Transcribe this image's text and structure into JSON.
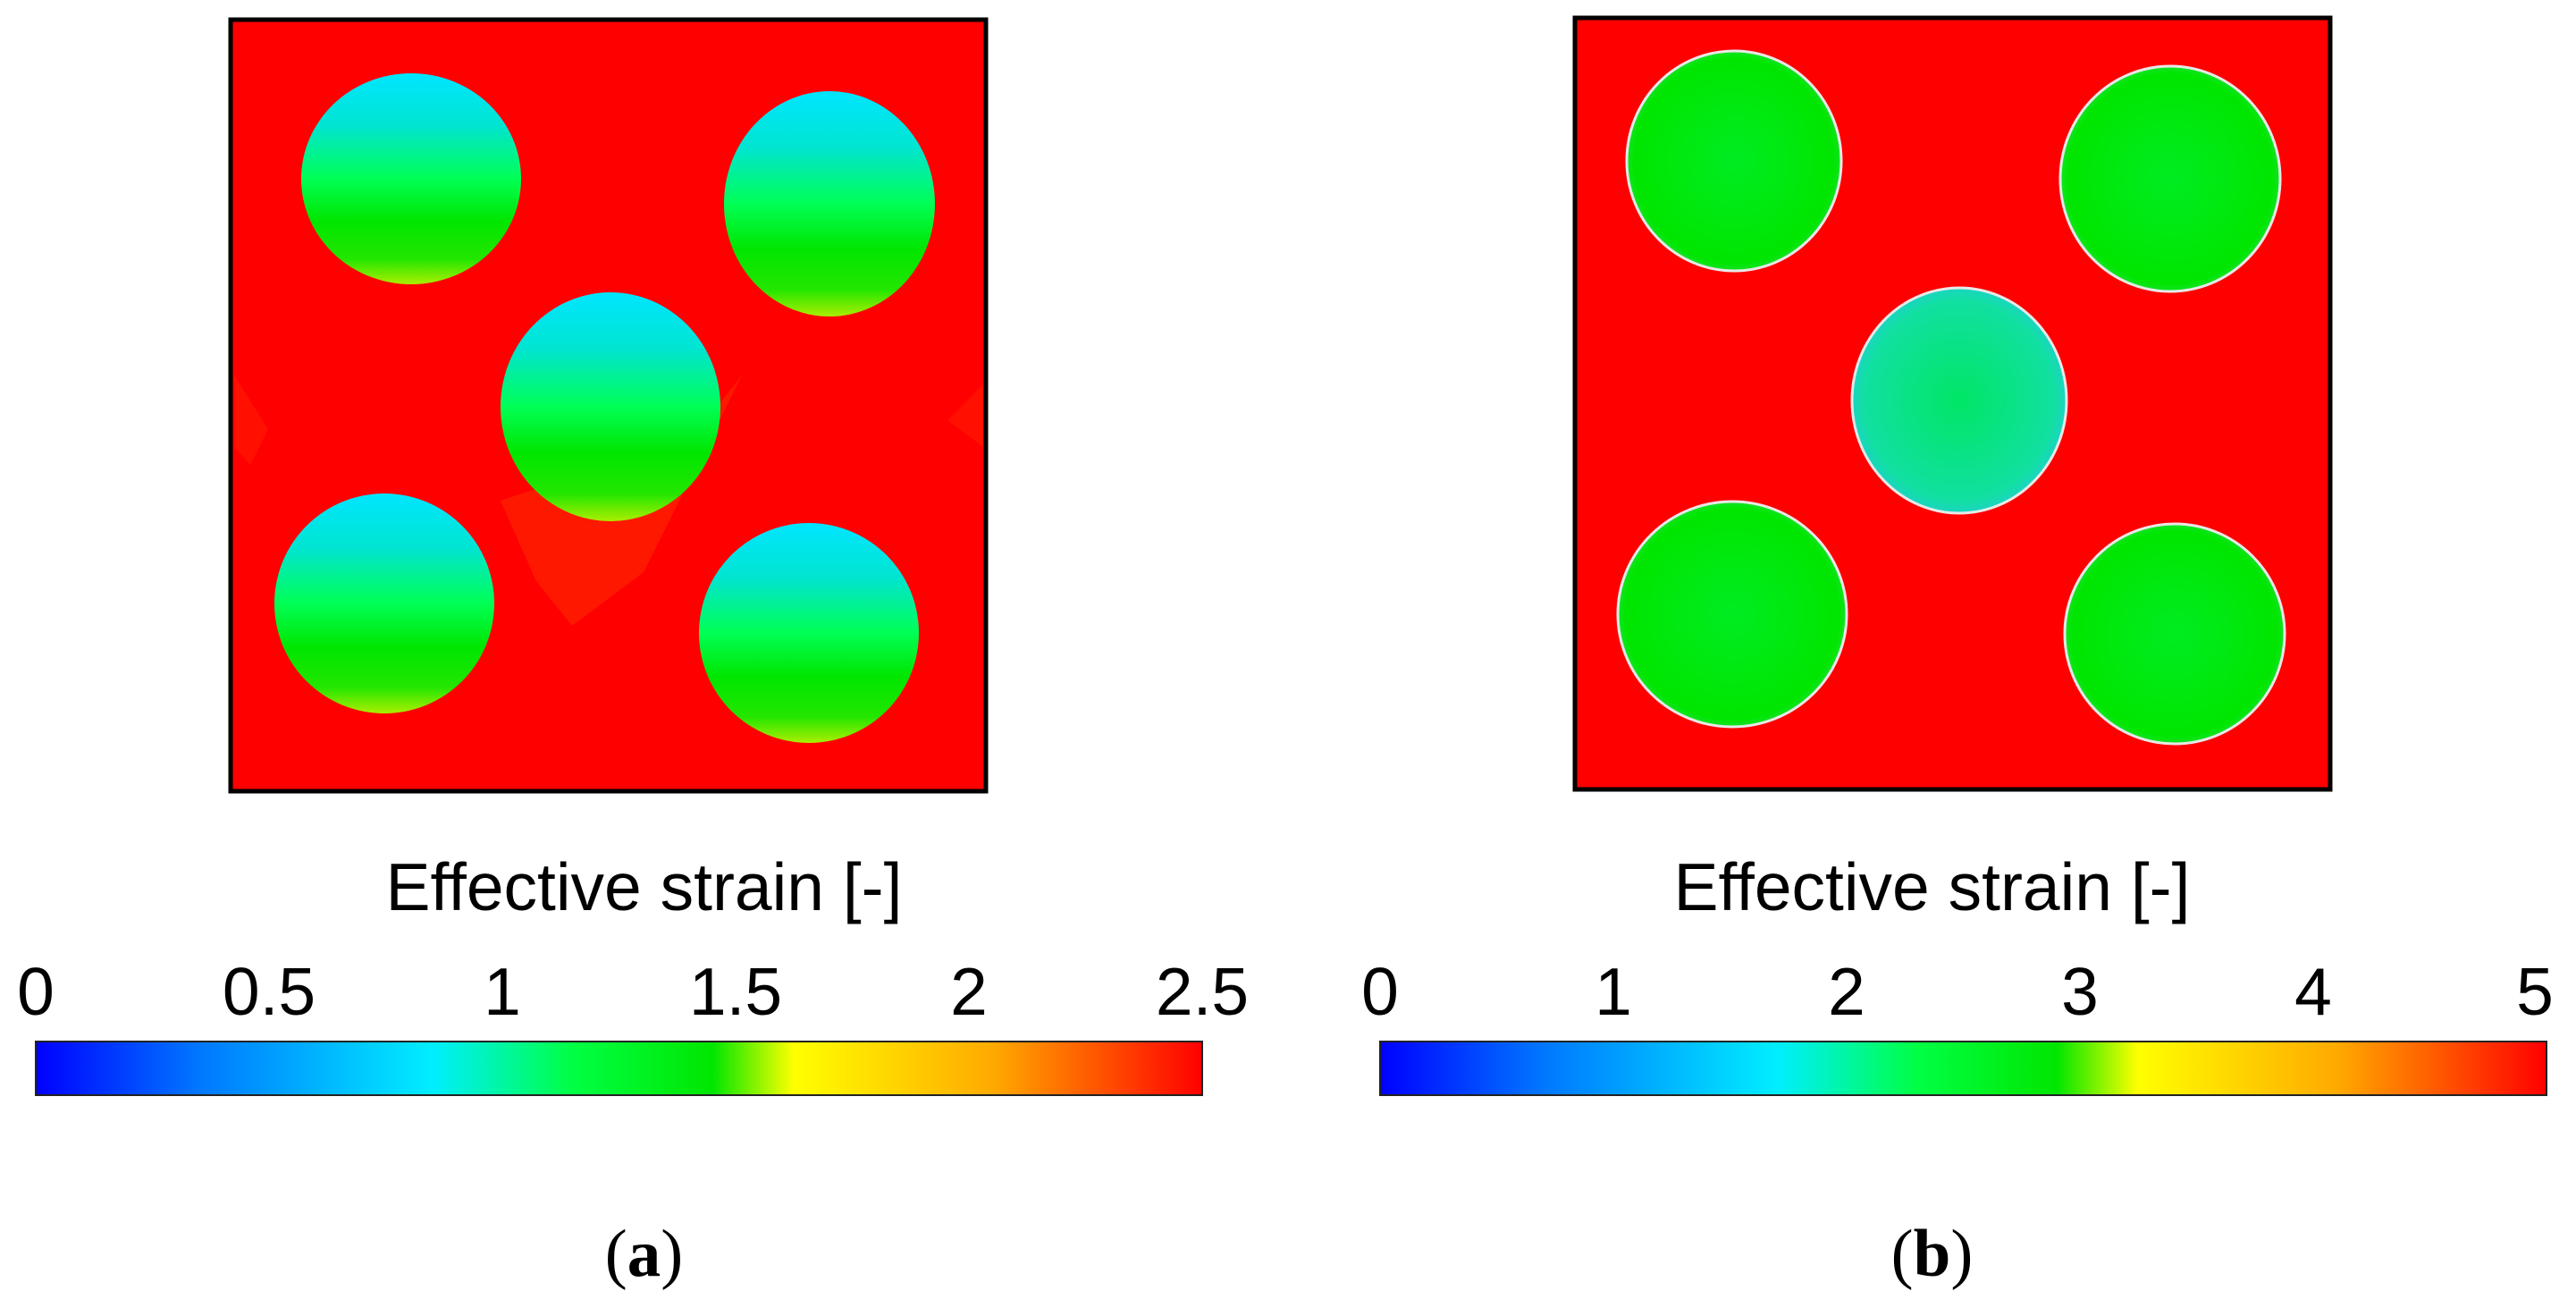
{
  "panels": [
    {
      "id": "a",
      "colorbar_title": "Effective strain [-]",
      "ticks": [
        "0",
        "0.5",
        "1",
        "1.5",
        "2",
        "2.5"
      ],
      "panel_label_open": "(",
      "panel_label_letter": "a",
      "panel_label_close": ")"
    },
    {
      "id": "b",
      "colorbar_title": "Effective strain [-]",
      "ticks": [
        "0",
        "1",
        "2",
        "3",
        "4",
        "5"
      ],
      "panel_label_open": "(",
      "panel_label_letter": "b",
      "panel_label_close": ")"
    }
  ],
  "colors": {
    "matrix": "#ff0000",
    "particle_low": "#00e5ff",
    "particle_mid": "#00e600",
    "frame": "#000000"
  },
  "colormap": [
    "#0000ff",
    "#0077ff",
    "#00eeff",
    "#00ff44",
    "#00e600",
    "#ffff00",
    "#ffaa00",
    "#ff0000"
  ]
}
